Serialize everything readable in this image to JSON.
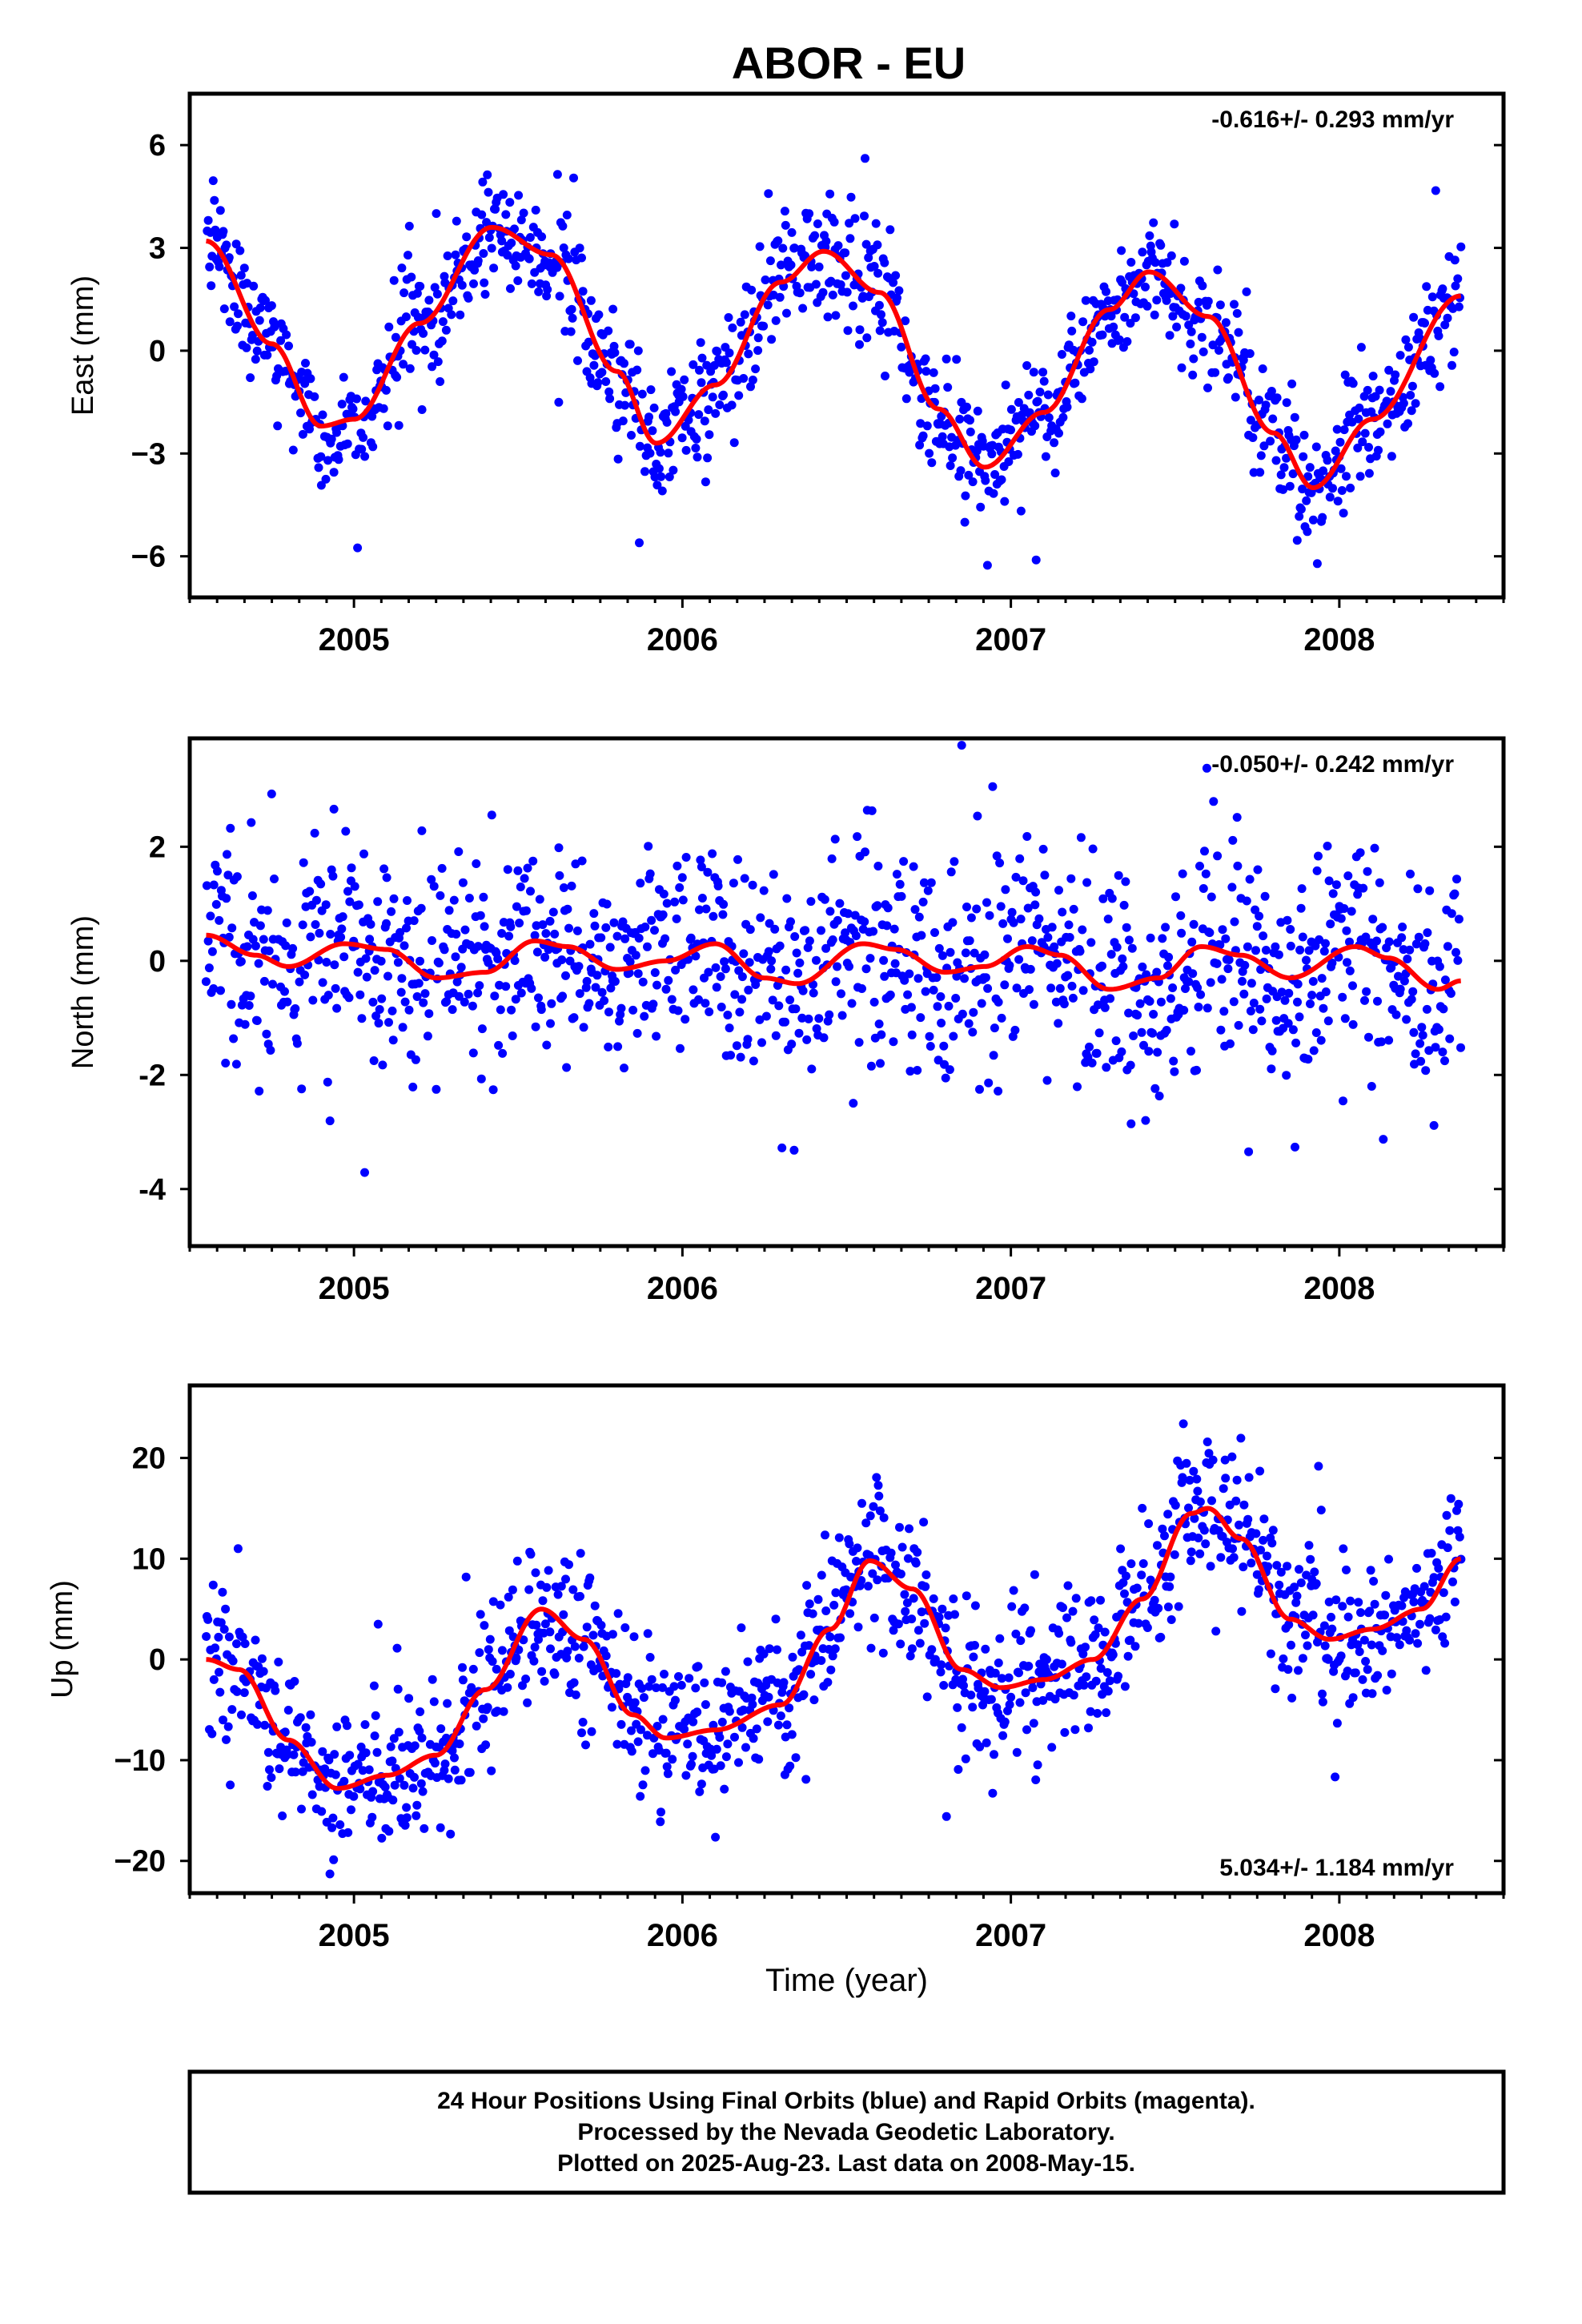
{
  "title": "ABOR - EU",
  "footer": {
    "line1": "24 Hour Positions Using Final Orbits (blue) and Rapid Orbits (magenta).",
    "line2": "Processed by the Nevada Geodetic Laboratory.",
    "line3": "Plotted on 2025-Aug-23. Last data on 2008-May-15."
  },
  "colors": {
    "final_orbits": "#0000ff",
    "fit_line": "#ff0000",
    "frame": "#000000"
  },
  "chart_data": [
    {
      "type": "scatter",
      "xlabel": "",
      "ylabel": "East (mm)",
      "xlim": [
        2004.5,
        2008.5
      ],
      "ylim": [
        -7.2,
        7.5
      ],
      "xticks": [
        2005,
        2006,
        2007,
        2008
      ],
      "yticks": [
        -6,
        -3,
        0,
        3,
        6
      ],
      "yticklabels": [
        "−6",
        "−3",
        "0",
        "3",
        "6"
      ],
      "rate_label": "-0.616+/- 0.293 mm/yr",
      "rate_position": "top-right",
      "data_range": [
        2004.55,
        2008.37
      ],
      "fit": {
        "x": [
          2004.55,
          2004.75,
          2004.9,
          2005.0,
          2005.2,
          2005.42,
          2005.6,
          2005.8,
          2005.92,
          2006.1,
          2006.3,
          2006.43,
          2006.6,
          2006.78,
          2006.92,
          2007.1,
          2007.3,
          2007.42,
          2007.6,
          2007.8,
          2007.92,
          2008.1,
          2008.37
        ],
        "y": [
          3.2,
          0.2,
          -2.2,
          -2.0,
          0.8,
          3.6,
          2.8,
          -0.6,
          -2.7,
          -1.0,
          2.0,
          2.9,
          1.7,
          -1.7,
          -3.4,
          -1.8,
          1.2,
          2.3,
          1.0,
          -2.4,
          -4.0,
          -2.0,
          1.6
        ]
      },
      "scatter_sd": 0.9
    },
    {
      "type": "scatter",
      "xlabel": "",
      "ylabel": "North (mm)",
      "xlim": [
        2004.5,
        2008.5
      ],
      "ylim": [
        -5.0,
        3.9
      ],
      "xticks": [
        2005,
        2006,
        2007,
        2008
      ],
      "yticks": [
        -4,
        -2,
        0,
        2
      ],
      "yticklabels": [
        "-4",
        "-2",
        "0",
        "2"
      ],
      "rate_label": "-0.050+/- 0.242 mm/yr",
      "rate_position": "top-right",
      "data_range": [
        2004.55,
        2008.37
      ],
      "fit": {
        "x": [
          2004.55,
          2004.7,
          2004.8,
          2004.97,
          2005.1,
          2005.25,
          2005.4,
          2005.55,
          2005.65,
          2005.8,
          2005.95,
          2006.1,
          2006.25,
          2006.35,
          2006.55,
          2006.65,
          2006.8,
          2006.92,
          2007.05,
          2007.15,
          2007.3,
          2007.45,
          2007.58,
          2007.7,
          2007.85,
          2008.05,
          2008.15,
          2008.3,
          2008.37
        ],
        "y": [
          0.45,
          0.1,
          -0.1,
          0.3,
          0.2,
          -0.3,
          -0.2,
          0.35,
          0.25,
          -0.15,
          0.0,
          0.3,
          -0.3,
          -0.4,
          0.3,
          0.2,
          -0.2,
          -0.1,
          0.25,
          0.1,
          -0.5,
          -0.3,
          0.25,
          0.1,
          -0.3,
          0.25,
          0.05,
          -0.5,
          -0.35
        ]
      },
      "scatter_sd": 0.95
    },
    {
      "type": "scatter",
      "xlabel": "Time (year)",
      "ylabel": "Up (mm)",
      "xlim": [
        2004.5,
        2008.5
      ],
      "ylim": [
        -23.2,
        27.2
      ],
      "xticks": [
        2005,
        2006,
        2007,
        2008
      ],
      "yticks": [
        -20,
        -10,
        0,
        10,
        20
      ],
      "yticklabels": [
        "−20",
        "−10",
        "0",
        "10",
        "20"
      ],
      "rate_label": "5.034+/- 1.184 mm/yr",
      "rate_position": "bottom-right",
      "data_range": [
        2004.55,
        2008.37
      ],
      "fit": {
        "x": [
          2004.55,
          2004.65,
          2004.8,
          2004.95,
          2005.1,
          2005.25,
          2005.4,
          2005.57,
          2005.7,
          2005.85,
          2005.95,
          2006.1,
          2006.3,
          2006.45,
          2006.57,
          2006.7,
          2006.85,
          2006.97,
          2007.1,
          2007.25,
          2007.4,
          2007.55,
          2007.6,
          2007.7,
          2007.85,
          2007.97,
          2008.1,
          2008.25,
          2008.37
        ],
        "y": [
          0.0,
          -1.0,
          -8.0,
          -12.8,
          -11.5,
          -9.5,
          -3.0,
          5.0,
          2.0,
          -5.5,
          -7.8,
          -7.0,
          -4.5,
          3.0,
          9.8,
          7.0,
          -1.0,
          -2.8,
          -2.0,
          0.0,
          6.0,
          14.5,
          15.0,
          12.0,
          4.0,
          2.0,
          3.0,
          5.0,
          10.0
        ]
      },
      "scatter_sd": 4.0
    }
  ]
}
